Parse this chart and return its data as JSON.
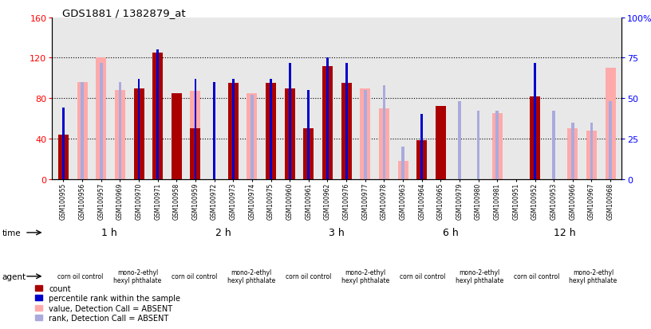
{
  "title": "GDS1881 / 1382879_at",
  "samples": [
    "GSM100955",
    "GSM100956",
    "GSM100957",
    "GSM100969",
    "GSM100970",
    "GSM100971",
    "GSM100958",
    "GSM100959",
    "GSM100972",
    "GSM100973",
    "GSM100974",
    "GSM100975",
    "GSM100960",
    "GSM100961",
    "GSM100962",
    "GSM100976",
    "GSM100977",
    "GSM100978",
    "GSM100963",
    "GSM100964",
    "GSM100965",
    "GSM100979",
    "GSM100980",
    "GSM100981",
    "GSM100951",
    "GSM100952",
    "GSM100953",
    "GSM100966",
    "GSM100967",
    "GSM100968"
  ],
  "count": [
    44,
    0,
    0,
    0,
    90,
    125,
    85,
    50,
    0,
    95,
    0,
    95,
    90,
    50,
    112,
    95,
    0,
    0,
    0,
    38,
    72,
    0,
    0,
    0,
    0,
    82,
    0,
    0,
    0,
    0
  ],
  "value_absent": [
    0,
    96,
    120,
    88,
    0,
    0,
    0,
    87,
    0,
    0,
    85,
    0,
    0,
    0,
    0,
    0,
    90,
    70,
    18,
    0,
    0,
    0,
    0,
    65,
    0,
    0,
    0,
    50,
    48,
    110
  ],
  "rank_present": [
    44,
    0,
    0,
    0,
    62,
    80,
    0,
    62,
    60,
    62,
    0,
    62,
    72,
    55,
    75,
    72,
    0,
    0,
    0,
    40,
    0,
    0,
    0,
    0,
    0,
    72,
    0,
    0,
    0,
    0
  ],
  "rank_absent": [
    0,
    60,
    72,
    60,
    0,
    0,
    0,
    0,
    0,
    0,
    52,
    0,
    0,
    0,
    0,
    0,
    55,
    58,
    20,
    0,
    0,
    48,
    42,
    42,
    0,
    0,
    42,
    35,
    35,
    48
  ],
  "time_groups": [
    {
      "label": "1 h",
      "start": 0,
      "end": 6,
      "color": "#b8f0b8"
    },
    {
      "label": "2 h",
      "start": 6,
      "end": 12,
      "color": "#b8f0b8"
    },
    {
      "label": "3 h",
      "start": 12,
      "end": 18,
      "color": "#b8f0b8"
    },
    {
      "label": "6 h",
      "start": 18,
      "end": 24,
      "color": "#5ee85e"
    },
    {
      "label": "12 h",
      "start": 24,
      "end": 30,
      "color": "#5ee85e"
    }
  ],
  "agent_groups": [
    {
      "label": "corn oil control",
      "start": 0,
      "end": 3,
      "color": "#ffb8ff"
    },
    {
      "label": "mono-2-ethyl\nhexyl phthalate",
      "start": 3,
      "end": 6,
      "color": "#ff78ff"
    },
    {
      "label": "corn oil control",
      "start": 6,
      "end": 9,
      "color": "#ffb8ff"
    },
    {
      "label": "mono-2-ethyl\nhexyl phthalate",
      "start": 9,
      "end": 12,
      "color": "#ff78ff"
    },
    {
      "label": "corn oil control",
      "start": 12,
      "end": 15,
      "color": "#ffb8ff"
    },
    {
      "label": "mono-2-ethyl\nhexyl phthalate",
      "start": 15,
      "end": 18,
      "color": "#ff78ff"
    },
    {
      "label": "corn oil control",
      "start": 18,
      "end": 21,
      "color": "#ffb8ff"
    },
    {
      "label": "mono-2-ethyl\nhexyl phthalate",
      "start": 21,
      "end": 24,
      "color": "#ff78ff"
    },
    {
      "label": "corn oil control",
      "start": 24,
      "end": 27,
      "color": "#ffb8ff"
    },
    {
      "label": "mono-2-ethyl\nhexyl phthalate",
      "start": 27,
      "end": 30,
      "color": "#ff78ff"
    }
  ],
  "ylim_left": [
    0,
    160
  ],
  "ylim_right": [
    0,
    100
  ],
  "yticks_left": [
    0,
    40,
    80,
    120,
    160
  ],
  "yticks_right": [
    0,
    25,
    50,
    75,
    100
  ],
  "color_count": "#aa0000",
  "color_rank_present": "#0000cc",
  "color_value_absent": "#ffaaaa",
  "color_rank_absent": "#aaaadd",
  "bg_plot": "#e8e8e8",
  "bar_width": 0.55
}
